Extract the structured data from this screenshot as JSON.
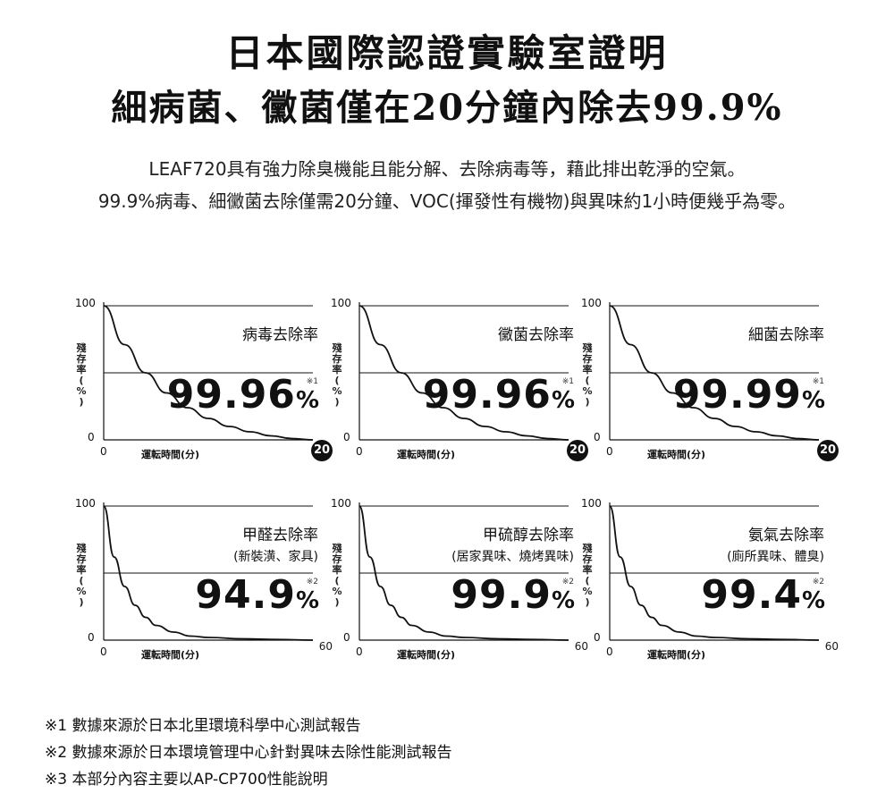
{
  "header": {
    "title_line1": "日本國際認證實驗室證明",
    "title_line2": "細病菌、黴菌僅在20分鐘內除去99.9%",
    "subtitle_line1": "LEAF720具有強力除臭機能且能分解、去除病毒等，藉此排出乾淨的空氣。",
    "subtitle_line2": "99.9%病毒、細黴菌去除僅需20分鐘、VOC(揮發性有機物)與異味約1小時便幾乎為零。"
  },
  "chart_data": [
    {
      "type": "line",
      "title": "病毒去除率",
      "subtitle": "",
      "result": "99.96",
      "result_unit": "%",
      "footnote_mark": "※1",
      "ylabel": "殘存率(%)",
      "xlabel": "運転時間(分)",
      "x_ticks": [
        "0",
        "20"
      ],
      "y_ticks": [
        "100",
        "0"
      ],
      "xlim": [
        0,
        20
      ],
      "ylim": [
        0,
        100
      ],
      "x_end_circled": true,
      "x": [
        0,
        2,
        4,
        6,
        8,
        10,
        12,
        14,
        16,
        18,
        20
      ],
      "y": [
        100,
        71,
        50,
        35,
        24,
        16,
        10,
        6,
        3,
        1,
        0
      ]
    },
    {
      "type": "line",
      "title": "黴菌去除率",
      "subtitle": "",
      "result": "99.96",
      "result_unit": "%",
      "footnote_mark": "※1",
      "ylabel": "殘存率(%)",
      "xlabel": "運転時間(分)",
      "x_ticks": [
        "0",
        "20"
      ],
      "y_ticks": [
        "100",
        "0"
      ],
      "xlim": [
        0,
        20
      ],
      "ylim": [
        0,
        100
      ],
      "x_end_circled": true,
      "x": [
        0,
        2,
        4,
        6,
        8,
        10,
        12,
        14,
        16,
        18,
        20
      ],
      "y": [
        100,
        71,
        50,
        35,
        24,
        16,
        10,
        6,
        3,
        1,
        0
      ]
    },
    {
      "type": "line",
      "title": "細菌去除率",
      "subtitle": "",
      "result": "99.99",
      "result_unit": "%",
      "footnote_mark": "※1",
      "ylabel": "殘存率(%)",
      "xlabel": "運転時間(分)",
      "x_ticks": [
        "0",
        "20"
      ],
      "y_ticks": [
        "100",
        "0"
      ],
      "xlim": [
        0,
        20
      ],
      "ylim": [
        0,
        100
      ],
      "x_end_circled": true,
      "x": [
        0,
        2,
        4,
        6,
        8,
        10,
        12,
        14,
        16,
        18,
        20
      ],
      "y": [
        100,
        71,
        50,
        35,
        24,
        16,
        10,
        6,
        3,
        1,
        0
      ]
    },
    {
      "type": "line",
      "title": "甲醛去除率",
      "subtitle": "(新裝潢、家具)",
      "result": "94.9",
      "result_unit": "%",
      "footnote_mark": "※2",
      "ylabel": "殘存率(%)",
      "xlabel": "運転時間(分)",
      "x_ticks": [
        "0",
        "60"
      ],
      "y_ticks": [
        "100",
        "0"
      ],
      "xlim": [
        0,
        60
      ],
      "ylim": [
        0,
        100
      ],
      "x_end_circled": false,
      "x": [
        0,
        3,
        6,
        9,
        12,
        15,
        20,
        25,
        30,
        40,
        50,
        60
      ],
      "y": [
        100,
        62,
        40,
        26,
        17,
        11,
        6,
        3,
        2,
        1,
        0.5,
        0
      ]
    },
    {
      "type": "line",
      "title": "甲硫醇去除率",
      "subtitle": "(居家異味、燒烤異味)",
      "result": "99.9",
      "result_unit": "%",
      "footnote_mark": "※2",
      "ylabel": "殘存率(%)",
      "xlabel": "運転時間(分)",
      "x_ticks": [
        "0",
        "60"
      ],
      "y_ticks": [
        "100",
        "0"
      ],
      "xlim": [
        0,
        60
      ],
      "ylim": [
        0,
        100
      ],
      "x_end_circled": false,
      "x": [
        0,
        3,
        6,
        9,
        12,
        15,
        20,
        25,
        30,
        40,
        50,
        60
      ],
      "y": [
        100,
        62,
        40,
        26,
        17,
        11,
        6,
        3,
        2,
        1,
        0.5,
        0
      ]
    },
    {
      "type": "line",
      "title": "氨氣去除率",
      "subtitle": "(廁所異味、體臭)",
      "result": "99.4",
      "result_unit": "%",
      "footnote_mark": "※2",
      "ylabel": "殘存率(%)",
      "xlabel": "運転時間(分)",
      "x_ticks": [
        "0",
        "60"
      ],
      "y_ticks": [
        "100",
        "0"
      ],
      "xlim": [
        0,
        60
      ],
      "ylim": [
        0,
        100
      ],
      "x_end_circled": false,
      "x": [
        0,
        3,
        6,
        9,
        12,
        15,
        20,
        25,
        30,
        40,
        50,
        60
      ],
      "y": [
        100,
        62,
        40,
        26,
        17,
        11,
        6,
        3,
        2,
        1,
        0.5,
        0
      ]
    }
  ],
  "footnotes": [
    "※1  數據來源於日本北里環境科學中心測試報告",
    "※2  數據來源於日本環境管理中心針對異味去除性能測試報告",
    "※3  本部分內容主要以AP-CP700性能說明"
  ]
}
